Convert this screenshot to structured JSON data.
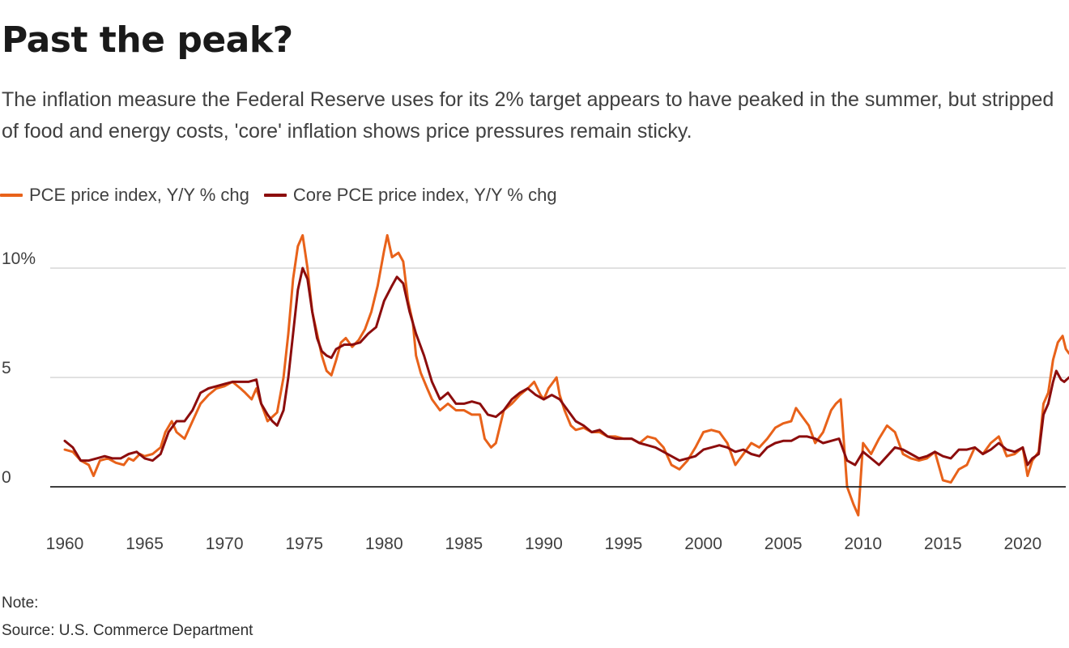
{
  "title": "Past the peak?",
  "subtitle": "The inflation measure the Federal Reserve uses for its 2% target appears to have peaked in the summer, but stripped of food and energy costs, 'core' inflation shows price pressures remain sticky.",
  "note": "Note:",
  "source": "Source: U.S. Commerce Department",
  "colors": {
    "pce": "#e8621a",
    "core": "#8c0d0d",
    "grid": "#cfcfcf",
    "axis": "#222222"
  },
  "chart_data": {
    "type": "line",
    "xlim": [
      1960,
      2023
    ],
    "ylim": [
      -2,
      12
    ],
    "x_ticks": [
      {
        "value": 1960,
        "label": "1960"
      },
      {
        "value": 1965,
        "label": "1965"
      },
      {
        "value": 1970,
        "label": "1970"
      },
      {
        "value": 1975,
        "label": "1975"
      },
      {
        "value": 1980,
        "label": "1980"
      },
      {
        "value": 1985,
        "label": "1985"
      },
      {
        "value": 1990,
        "label": "1990"
      },
      {
        "value": 1995,
        "label": "1995"
      },
      {
        "value": 2000,
        "label": "2000"
      },
      {
        "value": 2005,
        "label": "2005"
      },
      {
        "value": 2010,
        "label": "2010"
      },
      {
        "value": 2015,
        "label": "2015"
      },
      {
        "value": 2020,
        "label": "2020"
      }
    ],
    "y_ticks": [
      {
        "value": 0,
        "label": "0"
      },
      {
        "value": 5,
        "label": "5"
      },
      {
        "value": 10,
        "label": "10%"
      }
    ],
    "series": [
      {
        "name": "PCE price index, Y/Y % chg",
        "color": "#e8621a",
        "points": [
          [
            1960.0,
            1.7
          ],
          [
            1960.5,
            1.6
          ],
          [
            1961.0,
            1.2
          ],
          [
            1961.5,
            1.0
          ],
          [
            1961.8,
            0.5
          ],
          [
            1962.2,
            1.2
          ],
          [
            1962.7,
            1.3
          ],
          [
            1963.2,
            1.1
          ],
          [
            1963.7,
            1.0
          ],
          [
            1964.0,
            1.3
          ],
          [
            1964.3,
            1.2
          ],
          [
            1964.7,
            1.5
          ],
          [
            1965.0,
            1.4
          ],
          [
            1965.5,
            1.5
          ],
          [
            1966.0,
            1.8
          ],
          [
            1966.3,
            2.5
          ],
          [
            1966.7,
            3.0
          ],
          [
            1967.0,
            2.5
          ],
          [
            1967.5,
            2.2
          ],
          [
            1968.0,
            3.0
          ],
          [
            1968.5,
            3.8
          ],
          [
            1969.0,
            4.2
          ],
          [
            1969.5,
            4.5
          ],
          [
            1970.0,
            4.6
          ],
          [
            1970.5,
            4.8
          ],
          [
            1971.0,
            4.5
          ],
          [
            1971.3,
            4.3
          ],
          [
            1971.7,
            4.0
          ],
          [
            1972.0,
            4.5
          ],
          [
            1972.3,
            3.8
          ],
          [
            1972.7,
            3.0
          ],
          [
            1973.0,
            3.2
          ],
          [
            1973.3,
            3.4
          ],
          [
            1973.7,
            5.0
          ],
          [
            1974.0,
            7.0
          ],
          [
            1974.3,
            9.5
          ],
          [
            1974.6,
            11.0
          ],
          [
            1974.9,
            11.5
          ],
          [
            1975.2,
            10.0
          ],
          [
            1975.5,
            8.0
          ],
          [
            1975.8,
            7.0
          ],
          [
            1976.1,
            6.0
          ],
          [
            1976.4,
            5.3
          ],
          [
            1976.7,
            5.1
          ],
          [
            1977.0,
            5.8
          ],
          [
            1977.3,
            6.6
          ],
          [
            1977.6,
            6.8
          ],
          [
            1978.0,
            6.4
          ],
          [
            1978.4,
            6.7
          ],
          [
            1978.8,
            7.2
          ],
          [
            1979.2,
            8.0
          ],
          [
            1979.6,
            9.2
          ],
          [
            1980.0,
            10.8
          ],
          [
            1980.2,
            11.5
          ],
          [
            1980.5,
            10.5
          ],
          [
            1980.9,
            10.7
          ],
          [
            1981.2,
            10.3
          ],
          [
            1981.5,
            8.5
          ],
          [
            1981.8,
            7.5
          ],
          [
            1982.0,
            6.0
          ],
          [
            1982.3,
            5.2
          ],
          [
            1982.7,
            4.5
          ],
          [
            1983.0,
            4.0
          ],
          [
            1983.5,
            3.5
          ],
          [
            1984.0,
            3.8
          ],
          [
            1984.5,
            3.5
          ],
          [
            1985.0,
            3.5
          ],
          [
            1985.5,
            3.3
          ],
          [
            1986.0,
            3.3
          ],
          [
            1986.3,
            2.2
          ],
          [
            1986.7,
            1.8
          ],
          [
            1987.0,
            2.0
          ],
          [
            1987.5,
            3.5
          ],
          [
            1988.0,
            3.8
          ],
          [
            1988.5,
            4.2
          ],
          [
            1989.0,
            4.5
          ],
          [
            1989.4,
            4.8
          ],
          [
            1989.8,
            4.2
          ],
          [
            1990.0,
            4.0
          ],
          [
            1990.3,
            4.5
          ],
          [
            1990.6,
            4.8
          ],
          [
            1990.8,
            5.0
          ],
          [
            1991.0,
            4.2
          ],
          [
            1991.3,
            3.5
          ],
          [
            1991.7,
            2.8
          ],
          [
            1992.0,
            2.6
          ],
          [
            1992.5,
            2.7
          ],
          [
            1993.0,
            2.5
          ],
          [
            1993.5,
            2.5
          ],
          [
            1994.0,
            2.3
          ],
          [
            1994.5,
            2.3
          ],
          [
            1995.0,
            2.2
          ],
          [
            1995.5,
            2.2
          ],
          [
            1996.0,
            2.0
          ],
          [
            1996.5,
            2.3
          ],
          [
            1997.0,
            2.2
          ],
          [
            1997.5,
            1.8
          ],
          [
            1998.0,
            1.0
          ],
          [
            1998.5,
            0.8
          ],
          [
            1999.0,
            1.2
          ],
          [
            1999.5,
            1.8
          ],
          [
            2000.0,
            2.5
          ],
          [
            2000.5,
            2.6
          ],
          [
            2001.0,
            2.5
          ],
          [
            2001.5,
            2.0
          ],
          [
            2002.0,
            1.0
          ],
          [
            2002.5,
            1.5
          ],
          [
            2003.0,
            2.0
          ],
          [
            2003.5,
            1.8
          ],
          [
            2004.0,
            2.2
          ],
          [
            2004.5,
            2.7
          ],
          [
            2005.0,
            2.9
          ],
          [
            2005.5,
            3.0
          ],
          [
            2005.8,
            3.6
          ],
          [
            2006.2,
            3.2
          ],
          [
            2006.6,
            2.8
          ],
          [
            2007.0,
            2.0
          ],
          [
            2007.5,
            2.5
          ],
          [
            2008.0,
            3.5
          ],
          [
            2008.3,
            3.8
          ],
          [
            2008.6,
            4.0
          ],
          [
            2008.8,
            2.0
          ],
          [
            2009.0,
            0.0
          ],
          [
            2009.4,
            -0.8
          ],
          [
            2009.7,
            -1.3
          ],
          [
            2010.0,
            2.0
          ],
          [
            2010.5,
            1.5
          ],
          [
            2011.0,
            2.2
          ],
          [
            2011.5,
            2.8
          ],
          [
            2012.0,
            2.5
          ],
          [
            2012.5,
            1.5
          ],
          [
            2013.0,
            1.3
          ],
          [
            2013.5,
            1.2
          ],
          [
            2014.0,
            1.3
          ],
          [
            2014.5,
            1.6
          ],
          [
            2015.0,
            0.3
          ],
          [
            2015.5,
            0.2
          ],
          [
            2016.0,
            0.8
          ],
          [
            2016.5,
            1.0
          ],
          [
            2017.0,
            1.8
          ],
          [
            2017.5,
            1.5
          ],
          [
            2018.0,
            2.0
          ],
          [
            2018.5,
            2.3
          ],
          [
            2019.0,
            1.4
          ],
          [
            2019.5,
            1.5
          ],
          [
            2020.0,
            1.8
          ],
          [
            2020.3,
            0.5
          ],
          [
            2020.6,
            1.2
          ],
          [
            2021.0,
            1.6
          ],
          [
            2021.3,
            3.8
          ],
          [
            2021.6,
            4.3
          ],
          [
            2021.9,
            5.8
          ],
          [
            2022.2,
            6.6
          ],
          [
            2022.5,
            6.9
          ],
          [
            2022.7,
            6.3
          ],
          [
            2022.9,
            6.1
          ]
        ]
      },
      {
        "name": "Core PCE price index, Y/Y % chg",
        "color": "#8c0d0d",
        "points": [
          [
            1960.0,
            2.1
          ],
          [
            1960.5,
            1.8
          ],
          [
            1961.0,
            1.2
          ],
          [
            1961.5,
            1.2
          ],
          [
            1962.0,
            1.3
          ],
          [
            1962.5,
            1.4
          ],
          [
            1963.0,
            1.3
          ],
          [
            1963.5,
            1.3
          ],
          [
            1964.0,
            1.5
          ],
          [
            1964.5,
            1.6
          ],
          [
            1965.0,
            1.3
          ],
          [
            1965.5,
            1.2
          ],
          [
            1966.0,
            1.5
          ],
          [
            1966.5,
            2.5
          ],
          [
            1967.0,
            3.0
          ],
          [
            1967.5,
            3.0
          ],
          [
            1968.0,
            3.5
          ],
          [
            1968.5,
            4.3
          ],
          [
            1969.0,
            4.5
          ],
          [
            1969.5,
            4.6
          ],
          [
            1970.0,
            4.7
          ],
          [
            1970.5,
            4.8
          ],
          [
            1971.0,
            4.8
          ],
          [
            1971.5,
            4.8
          ],
          [
            1972.0,
            4.9
          ],
          [
            1972.3,
            3.8
          ],
          [
            1972.7,
            3.3
          ],
          [
            1973.0,
            3.0
          ],
          [
            1973.3,
            2.8
          ],
          [
            1973.7,
            3.5
          ],
          [
            1974.0,
            5.0
          ],
          [
            1974.3,
            7.0
          ],
          [
            1974.6,
            9.0
          ],
          [
            1974.9,
            10.0
          ],
          [
            1975.2,
            9.5
          ],
          [
            1975.5,
            8.0
          ],
          [
            1975.8,
            6.8
          ],
          [
            1976.1,
            6.2
          ],
          [
            1976.4,
            6.0
          ],
          [
            1976.7,
            5.9
          ],
          [
            1977.0,
            6.3
          ],
          [
            1977.5,
            6.5
          ],
          [
            1978.0,
            6.5
          ],
          [
            1978.5,
            6.6
          ],
          [
            1979.0,
            7.0
          ],
          [
            1979.5,
            7.3
          ],
          [
            1980.0,
            8.5
          ],
          [
            1980.5,
            9.2
          ],
          [
            1980.8,
            9.6
          ],
          [
            1981.2,
            9.3
          ],
          [
            1981.6,
            8.0
          ],
          [
            1982.0,
            7.0
          ],
          [
            1982.5,
            6.0
          ],
          [
            1983.0,
            4.8
          ],
          [
            1983.5,
            4.0
          ],
          [
            1984.0,
            4.3
          ],
          [
            1984.5,
            3.8
          ],
          [
            1985.0,
            3.8
          ],
          [
            1985.5,
            3.9
          ],
          [
            1986.0,
            3.8
          ],
          [
            1986.5,
            3.3
          ],
          [
            1987.0,
            3.2
          ],
          [
            1987.5,
            3.5
          ],
          [
            1988.0,
            4.0
          ],
          [
            1988.5,
            4.3
          ],
          [
            1989.0,
            4.5
          ],
          [
            1989.5,
            4.2
          ],
          [
            1990.0,
            4.0
          ],
          [
            1990.5,
            4.2
          ],
          [
            1991.0,
            4.0
          ],
          [
            1991.5,
            3.5
          ],
          [
            1992.0,
            3.0
          ],
          [
            1992.5,
            2.8
          ],
          [
            1993.0,
            2.5
          ],
          [
            1993.5,
            2.6
          ],
          [
            1994.0,
            2.3
          ],
          [
            1994.5,
            2.2
          ],
          [
            1995.0,
            2.2
          ],
          [
            1995.5,
            2.2
          ],
          [
            1996.0,
            2.0
          ],
          [
            1996.5,
            1.9
          ],
          [
            1997.0,
            1.8
          ],
          [
            1997.5,
            1.6
          ],
          [
            1998.0,
            1.4
          ],
          [
            1998.5,
            1.2
          ],
          [
            1999.0,
            1.3
          ],
          [
            1999.5,
            1.4
          ],
          [
            2000.0,
            1.7
          ],
          [
            2000.5,
            1.8
          ],
          [
            2001.0,
            1.9
          ],
          [
            2001.5,
            1.8
          ],
          [
            2002.0,
            1.6
          ],
          [
            2002.5,
            1.7
          ],
          [
            2003.0,
            1.5
          ],
          [
            2003.5,
            1.4
          ],
          [
            2004.0,
            1.8
          ],
          [
            2004.5,
            2.0
          ],
          [
            2005.0,
            2.1
          ],
          [
            2005.5,
            2.1
          ],
          [
            2006.0,
            2.3
          ],
          [
            2006.5,
            2.3
          ],
          [
            2007.0,
            2.2
          ],
          [
            2007.5,
            2.0
          ],
          [
            2008.0,
            2.1
          ],
          [
            2008.5,
            2.2
          ],
          [
            2009.0,
            1.2
          ],
          [
            2009.5,
            1.0
          ],
          [
            2010.0,
            1.6
          ],
          [
            2010.5,
            1.3
          ],
          [
            2011.0,
            1.0
          ],
          [
            2011.5,
            1.4
          ],
          [
            2012.0,
            1.8
          ],
          [
            2012.5,
            1.7
          ],
          [
            2013.0,
            1.5
          ],
          [
            2013.5,
            1.3
          ],
          [
            2014.0,
            1.4
          ],
          [
            2014.5,
            1.6
          ],
          [
            2015.0,
            1.4
          ],
          [
            2015.5,
            1.3
          ],
          [
            2016.0,
            1.7
          ],
          [
            2016.5,
            1.7
          ],
          [
            2017.0,
            1.8
          ],
          [
            2017.5,
            1.5
          ],
          [
            2018.0,
            1.7
          ],
          [
            2018.5,
            2.0
          ],
          [
            2019.0,
            1.7
          ],
          [
            2019.5,
            1.6
          ],
          [
            2020.0,
            1.8
          ],
          [
            2020.3,
            1.0
          ],
          [
            2020.6,
            1.3
          ],
          [
            2021.0,
            1.5
          ],
          [
            2021.3,
            3.3
          ],
          [
            2021.6,
            3.8
          ],
          [
            2021.9,
            4.8
          ],
          [
            2022.1,
            5.3
          ],
          [
            2022.4,
            4.9
          ],
          [
            2022.6,
            4.8
          ],
          [
            2022.9,
            5.0
          ]
        ]
      }
    ]
  }
}
